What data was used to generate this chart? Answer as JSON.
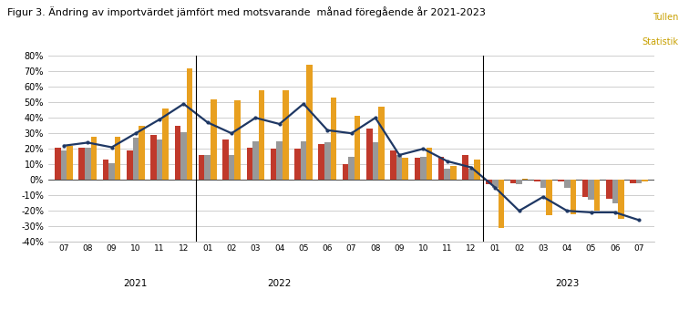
{
  "title": "Figur 3. Ändring av importvärdet jämfört med motsvarande  månad föregående år 2021-2023",
  "watermark_line1": "Tullen",
  "watermark_line2": "Statistik",
  "months": [
    "07",
    "08",
    "09",
    "10",
    "11",
    "12",
    "01",
    "02",
    "03",
    "04",
    "05",
    "06",
    "07",
    "08",
    "09",
    "10",
    "11",
    "12",
    "01",
    "02",
    "03",
    "04",
    "05",
    "06",
    "07"
  ],
  "year_labels": [
    [
      "2021",
      3
    ],
    [
      "2022",
      9
    ],
    [
      "2023",
      21
    ]
  ],
  "year_dividers": [
    5.5,
    17.5
  ],
  "EU": [
    21,
    21,
    13,
    19,
    29,
    35,
    16,
    26,
    21,
    20,
    20,
    23,
    10,
    33,
    19,
    14,
    15,
    16,
    -3,
    -2,
    -1,
    -1,
    -11,
    -12,
    -2
  ],
  "Euroområde": [
    19,
    21,
    11,
    27,
    26,
    31,
    16,
    16,
    25,
    25,
    25,
    24,
    15,
    24,
    16,
    15,
    7,
    7,
    -5,
    -3,
    -5,
    -5,
    -13,
    -15,
    -2
  ],
  "Externhandeln": [
    22,
    28,
    28,
    35,
    46,
    72,
    52,
    51,
    58,
    58,
    74,
    53,
    41,
    47,
    14,
    21,
    9,
    13,
    -31,
    1,
    -23,
    -22,
    -20,
    -25,
    -1
  ],
  "Totalt": [
    22,
    24,
    21,
    30,
    39,
    49,
    37,
    30,
    40,
    36,
    49,
    32,
    30,
    40,
    16,
    20,
    12,
    8,
    -5,
    -20,
    -11,
    -20,
    -21,
    -21,
    -26
  ],
  "ylim": [
    -40,
    80
  ],
  "yticks": [
    -40,
    -30,
    -20,
    -10,
    0,
    10,
    20,
    30,
    40,
    50,
    60,
    70,
    80
  ],
  "bar_width": 0.25,
  "colors": {
    "EU": "#c0392b",
    "Euroområde": "#999999",
    "Externhandeln": "#e8a020",
    "Totalt": "#1f3864"
  },
  "background": "#ffffff",
  "grid_color": "#bbbbbb"
}
